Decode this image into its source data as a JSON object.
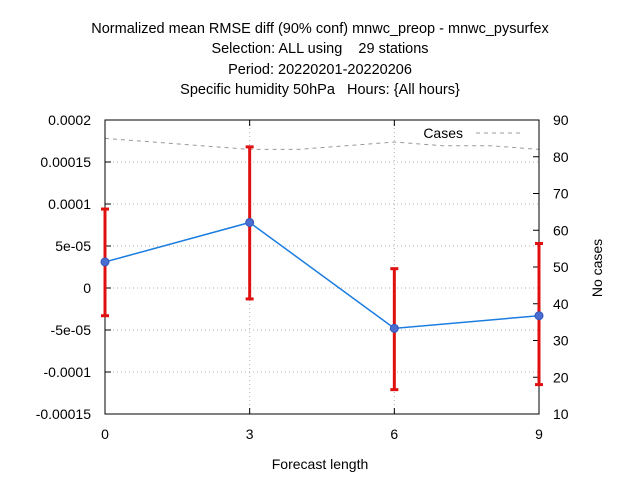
{
  "chart_data": {
    "type": "line",
    "title_lines": [
      "Normalized mean RMSE diff (90% conf) mnwc_preop - mnwc_pysurfex",
      "Selection: ALL using    29 stations",
      "Period: 20220201-20220206",
      "Specific humidity 50hPa   Hours: {All hours}"
    ],
    "xlabel": "Forecast length",
    "ylabel": "",
    "y2label": "No cases",
    "x": [
      0,
      3,
      6,
      9
    ],
    "xlim": [
      0,
      9
    ],
    "ylim": [
      -0.00015,
      0.0002
    ],
    "y2lim": [
      10,
      90
    ],
    "x_ticks": [
      "0",
      "3",
      "6",
      "9"
    ],
    "y_ticks": [
      "0.0002",
      "0.00015",
      "0.0001",
      "5e-05",
      "0",
      "-5e-05",
      "-0.0001",
      "-0.00015"
    ],
    "y_tick_values": [
      0.0002,
      0.00015,
      0.0001,
      5e-05,
      0,
      -5e-05,
      -0.0001,
      -0.00015
    ],
    "y2_ticks": [
      "90",
      "80",
      "70",
      "60",
      "50",
      "40",
      "30",
      "20",
      "10"
    ],
    "y2_tick_values": [
      90,
      80,
      70,
      60,
      50,
      40,
      30,
      20,
      10
    ],
    "grid": true,
    "legend_position": "top-right",
    "series": [
      {
        "values": [
          3.1e-05,
          7.8e-05,
          -4.8e-05,
          -3.3e-05
        ],
        "err_low": [
          -3.3e-05,
          -1.3e-05,
          -0.000121,
          -0.000115
        ],
        "err_high": [
          9.4e-05,
          0.000168,
          2.3e-05,
          5.3e-05
        ],
        "line_color": "#1a7de0",
        "marker_color": "#4a6ed0",
        "error_color": "#e01010"
      },
      {
        "name": "Cases",
        "axis": "y2",
        "x": [
          0,
          1,
          2,
          3,
          4,
          5,
          6,
          7,
          8,
          9
        ],
        "values": [
          85,
          84,
          83,
          82,
          82,
          83,
          84,
          83,
          83,
          82
        ],
        "color": "#999999"
      }
    ]
  }
}
